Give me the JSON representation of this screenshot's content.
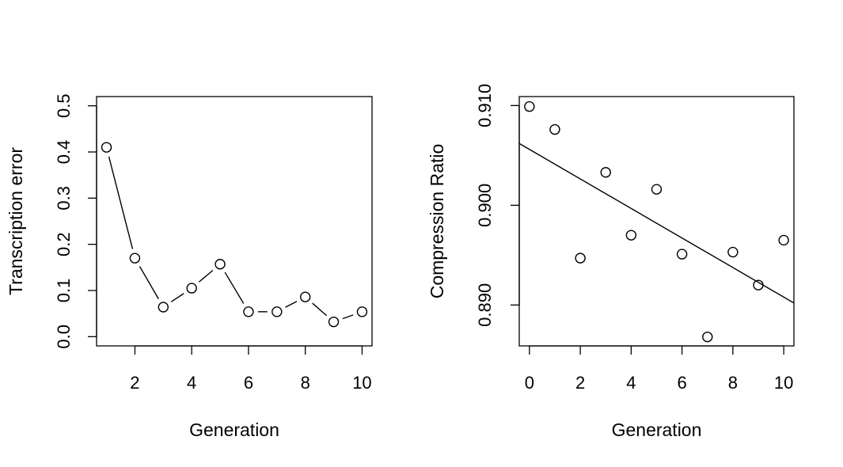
{
  "chart_data": [
    {
      "type": "line",
      "xlabel": "Generation",
      "ylabel": "Transcription error",
      "xlim": [
        0.65,
        10.35
      ],
      "ylim": [
        -0.02,
        0.52
      ],
      "xticks": [
        2,
        4,
        6,
        8,
        10
      ],
      "yticks": [
        0.0,
        0.1,
        0.2,
        0.3,
        0.4,
        0.5
      ],
      "ytick_labels": [
        "0.0",
        "0.1",
        "0.2",
        "0.3",
        "0.4",
        "0.5"
      ],
      "grid": false,
      "markers": "open-circle",
      "connector": "broken-line",
      "series": [
        {
          "x": [
            1,
            2,
            3,
            4,
            5,
            6,
            7,
            8,
            9,
            10
          ],
          "y": [
            0.41,
            0.17,
            0.064,
            0.105,
            0.157,
            0.054,
            0.054,
            0.086,
            0.032,
            0.054
          ]
        }
      ]
    },
    {
      "type": "scatter",
      "xlabel": "Generation",
      "ylabel": "Compression Ratio",
      "xlim": [
        -0.4,
        10.4
      ],
      "ylim": [
        0.8859,
        0.9109
      ],
      "xticks": [
        0,
        2,
        4,
        6,
        8,
        10
      ],
      "yticks": [
        0.89,
        0.9,
        0.91
      ],
      "ytick_labels": [
        "0.890",
        "0.900",
        "0.910"
      ],
      "grid": false,
      "markers": "open-circle",
      "series": [
        {
          "x": [
            0,
            1,
            2,
            3,
            4,
            5,
            6,
            7,
            8,
            9,
            10
          ],
          "y": [
            0.9099,
            0.9076,
            0.8947,
            0.9033,
            0.897,
            0.9016,
            0.8951,
            0.8868,
            0.8953,
            0.892,
            0.8965
          ]
        }
      ],
      "regression_line": {
        "x": [
          -0.4,
          10.4
        ],
        "y": [
          0.9062,
          0.8902
        ]
      }
    }
  ]
}
